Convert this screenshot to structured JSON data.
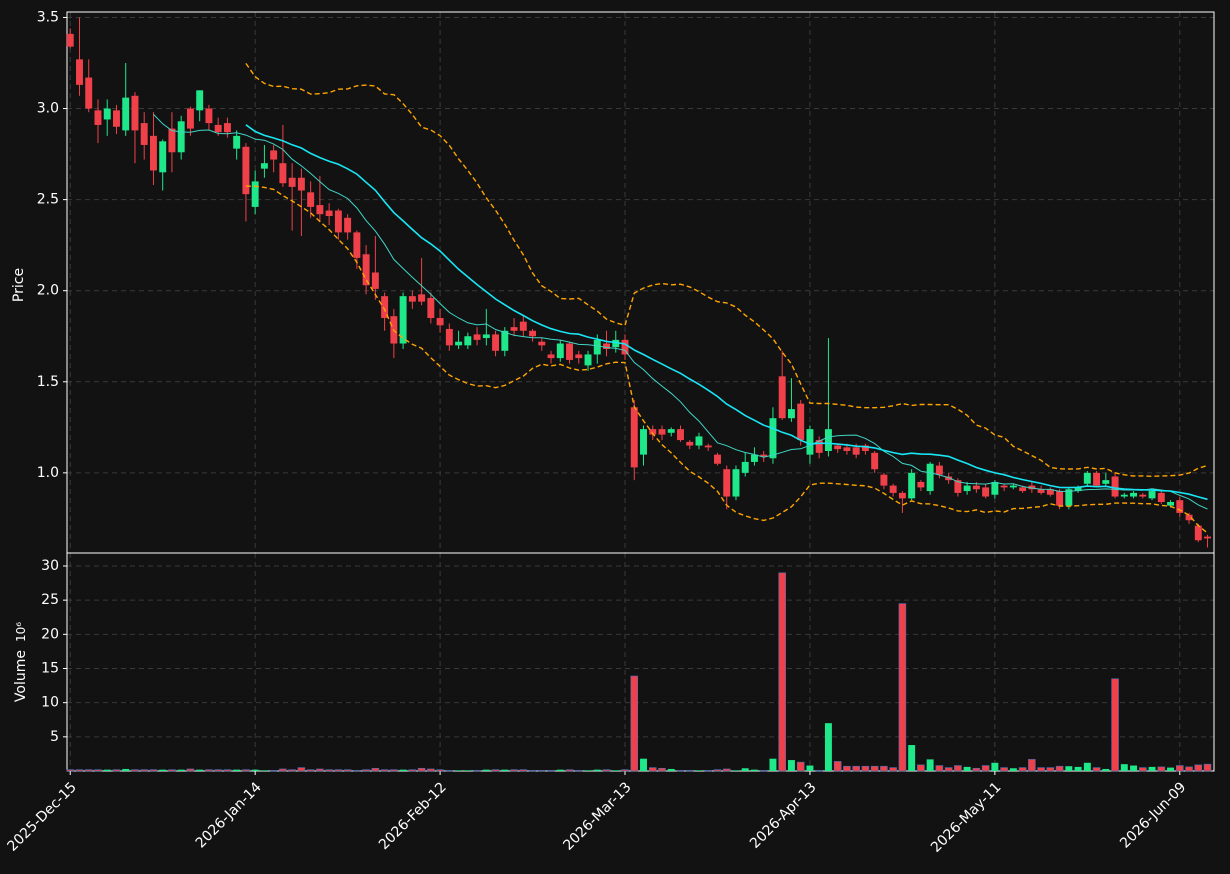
{
  "chart_data": {
    "type": "candlestick",
    "ylabel": "Price",
    "volume_ylabel": "Volume",
    "volume_scale_label": "10⁶",
    "categories": [
      "2025-Dec-15",
      null,
      null,
      null,
      null,
      null,
      null,
      null,
      null,
      null,
      null,
      null,
      null,
      null,
      null,
      null,
      null,
      null,
      null,
      null,
      "2026-Jan-14",
      null,
      null,
      null,
      null,
      null,
      null,
      null,
      null,
      null,
      null,
      null,
      null,
      null,
      null,
      null,
      null,
      null,
      null,
      null,
      "2026-Feb-12",
      null,
      null,
      null,
      null,
      null,
      null,
      null,
      null,
      null,
      null,
      null,
      null,
      null,
      null,
      null,
      null,
      null,
      null,
      null,
      "2026-Mar-13",
      null,
      null,
      null,
      null,
      null,
      null,
      null,
      null,
      null,
      null,
      null,
      null,
      null,
      null,
      null,
      null,
      null,
      null,
      null,
      "2026-Apr-13",
      null,
      null,
      null,
      null,
      null,
      null,
      null,
      null,
      null,
      null,
      null,
      null,
      null,
      null,
      null,
      null,
      null,
      null,
      null,
      "2026-May-11",
      null,
      null,
      null,
      null,
      null,
      null,
      null,
      null,
      null,
      null,
      null,
      null,
      null,
      null,
      null,
      null,
      null,
      null,
      null,
      "2026-Jun-09",
      null,
      null,
      null
    ],
    "open": [
      3.41,
      3.27,
      3.17,
      2.99,
      2.94,
      2.99,
      2.88,
      3.07,
      2.92,
      2.85,
      2.65,
      2.89,
      2.76,
      3.0,
      2.99,
      3.0,
      2.91,
      2.92,
      2.78,
      2.79,
      2.46,
      2.67,
      2.77,
      2.7,
      2.62,
      2.62,
      2.54,
      2.47,
      2.44,
      2.44,
      2.4,
      2.32,
      2.2,
      2.1,
      1.97,
      1.86,
      1.71,
      1.97,
      1.98,
      1.96,
      1.85,
      1.79,
      1.7,
      1.7,
      1.76,
      1.74,
      1.76,
      1.67,
      1.8,
      1.83,
      1.78,
      1.72,
      1.65,
      1.63,
      1.71,
      1.65,
      1.59,
      1.65,
      1.71,
      1.69,
      1.73,
      1.36,
      1.1,
      1.24,
      1.24,
      1.22,
      1.24,
      1.17,
      1.15,
      1.15,
      1.1,
      1.02,
      0.87,
      1.0,
      1.06,
      1.1,
      1.08,
      1.53,
      1.3,
      1.38,
      1.1,
      1.18,
      1.12,
      1.15,
      1.14,
      1.14,
      1.15,
      1.11,
      0.99,
      0.93,
      0.89,
      0.86,
      0.95,
      0.9,
      1.04,
      0.98,
      0.96,
      0.9,
      0.93,
      0.92,
      0.88,
      0.93,
      0.92,
      0.92,
      0.93,
      0.91,
      0.91,
      0.9,
      0.82,
      0.9,
      0.94,
      1.0,
      0.94,
      0.98,
      0.87,
      0.87,
      0.88,
      0.86,
      0.89,
      0.82,
      0.85,
      0.77,
      0.71,
      0.65
    ],
    "high": [
      3.44,
      3.5,
      3.27,
      3.05,
      3.05,
      3.02,
      3.25,
      3.09,
      2.98,
      2.98,
      2.83,
      2.98,
      2.96,
      3.01,
      3.1,
      3.02,
      2.95,
      2.95,
      2.88,
      2.81,
      2.66,
      2.8,
      2.8,
      2.91,
      2.7,
      2.67,
      2.6,
      2.63,
      2.48,
      2.45,
      2.42,
      2.33,
      2.25,
      2.3,
      1.99,
      1.9,
      1.99,
      2.0,
      2.18,
      1.99,
      1.9,
      1.82,
      1.78,
      1.77,
      1.8,
      1.9,
      1.78,
      1.8,
      1.85,
      1.86,
      1.79,
      1.74,
      1.67,
      1.73,
      1.72,
      1.67,
      1.67,
      1.76,
      1.78,
      1.78,
      1.76,
      1.4,
      1.26,
      1.26,
      1.26,
      1.25,
      1.26,
      1.18,
      1.22,
      1.16,
      1.11,
      1.04,
      1.04,
      1.11,
      1.14,
      1.12,
      1.36,
      1.67,
      1.52,
      1.4,
      1.26,
      1.2,
      1.74,
      1.16,
      1.16,
      1.16,
      1.16,
      1.12,
      1.0,
      0.94,
      0.9,
      1.02,
      0.96,
      1.06,
      1.06,
      1.0,
      0.97,
      0.95,
      0.95,
      0.94,
      0.96,
      0.94,
      0.94,
      0.93,
      0.95,
      0.93,
      0.92,
      0.91,
      0.92,
      0.93,
      1.01,
      1.01,
      1.0,
      1.0,
      0.89,
      0.9,
      0.89,
      0.91,
      0.9,
      0.85,
      0.87,
      0.78,
      0.72,
      0.66
    ],
    "low": [
      3.33,
      3.07,
      2.98,
      2.81,
      2.85,
      2.86,
      2.85,
      2.7,
      2.72,
      2.58,
      2.55,
      2.65,
      2.72,
      2.85,
      2.93,
      2.88,
      2.85,
      2.84,
      2.72,
      2.38,
      2.42,
      2.62,
      2.65,
      2.57,
      2.33,
      2.3,
      2.4,
      2.38,
      2.36,
      2.28,
      2.28,
      2.12,
      1.98,
      1.95,
      1.78,
      1.63,
      1.68,
      1.9,
      1.92,
      1.82,
      1.77,
      1.67,
      1.68,
      1.68,
      1.7,
      1.7,
      1.64,
      1.64,
      1.75,
      1.75,
      1.72,
      1.67,
      1.6,
      1.61,
      1.6,
      1.6,
      1.56,
      1.6,
      1.64,
      1.66,
      1.62,
      0.96,
      1.04,
      1.18,
      1.18,
      1.2,
      1.17,
      1.13,
      1.13,
      1.12,
      1.04,
      0.8,
      0.85,
      0.98,
      1.04,
      1.06,
      1.05,
      1.29,
      1.28,
      1.15,
      1.05,
      1.08,
      1.09,
      1.11,
      1.1,
      1.08,
      1.1,
      1.0,
      0.91,
      0.87,
      0.78,
      0.85,
      0.9,
      0.88,
      0.97,
      0.94,
      0.87,
      0.88,
      0.89,
      0.86,
      0.86,
      0.9,
      0.91,
      0.89,
      0.89,
      0.88,
      0.87,
      0.8,
      0.8,
      0.89,
      0.93,
      0.92,
      0.93,
      0.86,
      0.86,
      0.86,
      0.86,
      0.85,
      0.83,
      0.81,
      0.76,
      0.72,
      0.62,
      0.59
    ],
    "close": [
      3.34,
      3.13,
      3.0,
      2.91,
      3.0,
      2.9,
      3.06,
      2.88,
      2.8,
      2.66,
      2.82,
      2.76,
      2.93,
      2.89,
      3.1,
      2.92,
      2.87,
      2.87,
      2.85,
      2.53,
      2.6,
      2.7,
      2.72,
      2.59,
      2.57,
      2.55,
      2.46,
      2.42,
      2.41,
      2.32,
      2.32,
      2.18,
      2.03,
      2.01,
      1.85,
      1.71,
      1.97,
      1.94,
      1.94,
      1.85,
      1.81,
      1.7,
      1.72,
      1.75,
      1.73,
      1.76,
      1.67,
      1.78,
      1.78,
      1.78,
      1.75,
      1.7,
      1.63,
      1.71,
      1.62,
      1.63,
      1.65,
      1.73,
      1.68,
      1.73,
      1.65,
      1.03,
      1.24,
      1.21,
      1.21,
      1.24,
      1.18,
      1.15,
      1.2,
      1.14,
      1.05,
      0.87,
      1.02,
      1.06,
      1.1,
      1.09,
      1.3,
      1.3,
      1.35,
      1.18,
      1.24,
      1.11,
      1.24,
      1.13,
      1.12,
      1.1,
      1.12,
      1.02,
      0.93,
      0.89,
      0.86,
      1.0,
      0.92,
      1.05,
      0.99,
      0.96,
      0.89,
      0.93,
      0.91,
      0.87,
      0.95,
      0.92,
      0.93,
      0.9,
      0.91,
      0.89,
      0.88,
      0.82,
      0.91,
      0.92,
      1.0,
      0.93,
      0.96,
      0.87,
      0.88,
      0.89,
      0.87,
      0.9,
      0.84,
      0.84,
      0.78,
      0.74,
      0.63,
      0.64
    ],
    "volume": [
      0.2,
      0.2,
      0.2,
      0.2,
      0.2,
      0.2,
      0.3,
      0.2,
      0.2,
      0.2,
      0.2,
      0.2,
      0.2,
      0.3,
      0.2,
      0.2,
      0.2,
      0.2,
      0.2,
      0.2,
      0.2,
      0.1,
      0.1,
      0.3,
      0.2,
      0.5,
      0.2,
      0.3,
      0.2,
      0.2,
      0.2,
      0.1,
      0.2,
      0.4,
      0.2,
      0.2,
      0.2,
      0.2,
      0.4,
      0.3,
      0.2,
      0.1,
      0.1,
      0.1,
      0.1,
      0.2,
      0.2,
      0.2,
      0.2,
      0.2,
      0.1,
      0.1,
      0.1,
      0.2,
      0.2,
      0.1,
      0.1,
      0.2,
      0.2,
      0.1,
      0.2,
      13.9,
      1.8,
      0.5,
      0.4,
      0.3,
      0.1,
      0.1,
      0.1,
      0.1,
      0.2,
      0.3,
      0.1,
      0.4,
      0.2,
      0.1,
      1.8,
      29.0,
      1.6,
      1.3,
      0.8,
      0.1,
      7.0,
      1.4,
      0.7,
      0.7,
      0.7,
      0.7,
      0.7,
      0.5,
      24.5,
      3.8,
      0.9,
      1.7,
      0.8,
      0.5,
      0.8,
      0.6,
      0.4,
      0.8,
      1.2,
      0.5,
      0.4,
      0.5,
      1.7,
      0.5,
      0.5,
      0.7,
      0.7,
      0.6,
      1.2,
      0.5,
      0.3,
      13.5,
      1.0,
      0.8,
      0.5,
      0.6,
      0.6,
      0.5,
      0.8,
      0.6,
      0.9,
      1.0
    ],
    "up_color": "#1ee88a",
    "down_color": "#f0414a",
    "xlim": [
      -0.35,
      123.7
    ],
    "ylim": [
      0.56,
      3.53
    ],
    "yticks": [
      {
        "value": 1.0,
        "label": "1.0"
      },
      1.5,
      {
        "value": 2.0,
        "label": "2.0"
      },
      2.5,
      {
        "value": 3.0,
        "label": "3.0"
      },
      3.5
    ],
    "volume_ylim": [
      0,
      31.9
    ],
    "volume_yticks": [
      5,
      10,
      15,
      20,
      25,
      30
    ],
    "grid": true,
    "moving_averages": [
      {
        "window": 10,
        "color": "#3fd6c6"
      },
      {
        "window": 20,
        "color": "#18e6f5"
      }
    ],
    "bollinger": {
      "window": 20,
      "std": 2,
      "color": "#ffa500"
    }
  }
}
